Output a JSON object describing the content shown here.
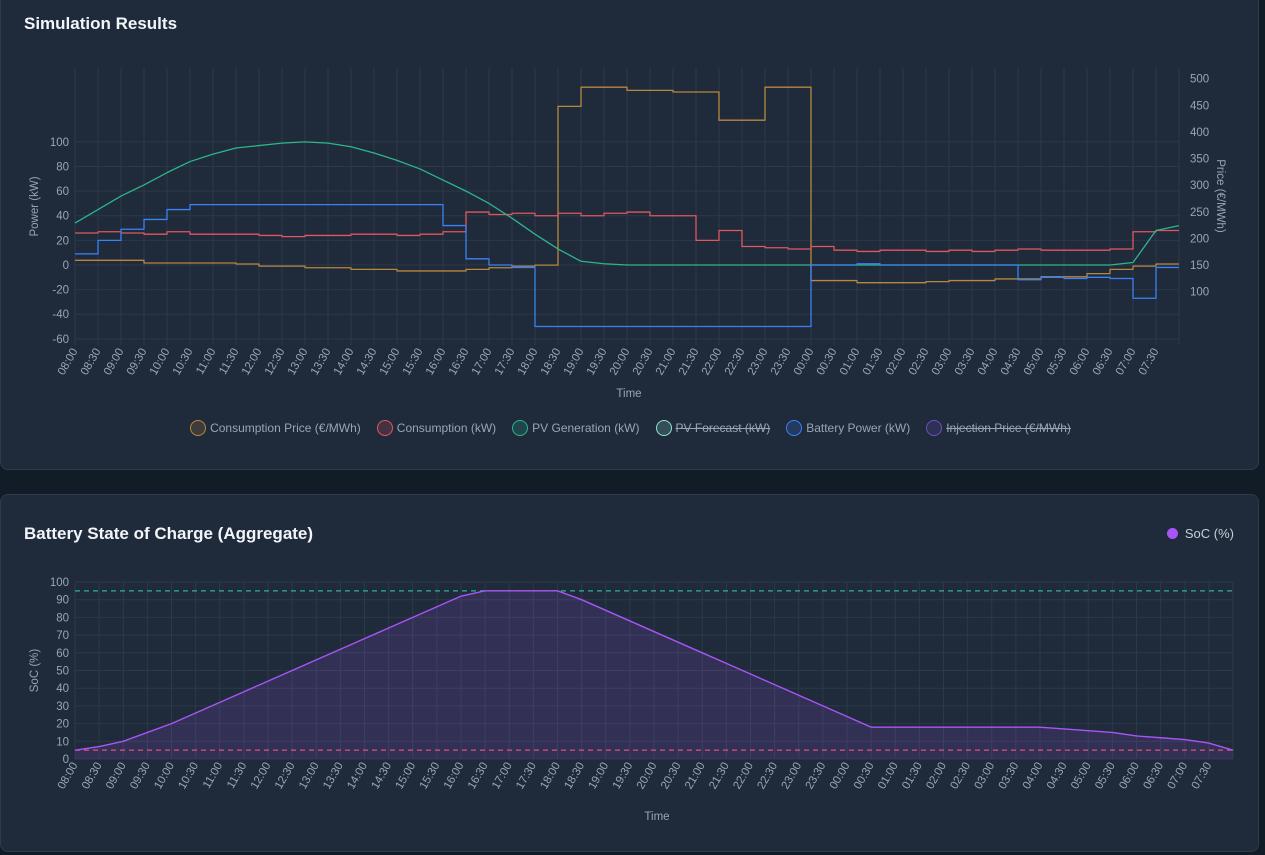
{
  "sim": {
    "title": "Simulation Results",
    "legend": [
      {
        "label": "Consumption Price (€/MWh)",
        "color": "#b8883e",
        "hidden": false
      },
      {
        "label": "Consumption (kW)",
        "color": "#e0575f",
        "hidden": false
      },
      {
        "label": "PV Generation (kW)",
        "color": "#2db58c",
        "hidden": false
      },
      {
        "label": "PV Forecast (kW)",
        "color": "#8fe3cf",
        "hidden": true
      },
      {
        "label": "Battery Power (kW)",
        "color": "#3b82f6",
        "hidden": false
      },
      {
        "label": "Injection Price (€/MWh)",
        "color": "#6d4fc0",
        "hidden": true
      }
    ]
  },
  "soc": {
    "title": "Battery State of Charge (Aggregate)",
    "legend_label": "SoC (%)"
  },
  "chart_data": [
    {
      "type": "line",
      "title": "Simulation Results",
      "xlabel": "Time",
      "ylabel": "Power (kW)",
      "y2label": "Price (€/MWh)",
      "ylim": [
        -65,
        160
      ],
      "y2lim": [
        0,
        520
      ],
      "yticks": [
        -60,
        -40,
        -20,
        0,
        20,
        40,
        60,
        80,
        100
      ],
      "y2ticks": [
        100,
        150,
        200,
        250,
        300,
        350,
        400,
        450,
        500
      ],
      "categories": [
        "08:00",
        "08:30",
        "09:00",
        "09:30",
        "10:00",
        "10:30",
        "11:00",
        "11:30",
        "12:00",
        "12:30",
        "13:00",
        "13:30",
        "14:00",
        "14:30",
        "15:00",
        "15:30",
        "16:00",
        "16:30",
        "17:00",
        "17:30",
        "18:00",
        "18:30",
        "19:00",
        "19:30",
        "20:00",
        "20:30",
        "21:00",
        "21:30",
        "22:00",
        "22:30",
        "23:00",
        "23:30",
        "00:00",
        "00:30",
        "01:00",
        "01:30",
        "02:00",
        "02:30",
        "03:00",
        "03:30",
        "04:00",
        "04:30",
        "05:00",
        "05:30",
        "06:00",
        "06:30",
        "07:00",
        "07:30"
      ],
      "grid": true,
      "legend_position": "bottom",
      "series": [
        {
          "name": "Consumption Price (€/MWh)",
          "axis": "right",
          "step": true,
          "color": "#b8883e",
          "values": [
            159,
            159,
            159,
            154,
            154,
            154,
            154,
            152,
            148,
            148,
            145,
            145,
            142,
            142,
            139,
            139,
            139,
            142,
            145,
            148,
            150,
            448,
            484,
            484,
            478,
            478,
            475,
            475,
            422,
            422,
            484,
            484,
            121,
            121,
            117,
            117,
            117,
            119,
            121,
            121,
            124,
            124,
            128,
            128,
            134,
            142,
            148,
            152
          ]
        },
        {
          "name": "Consumption (kW)",
          "axis": "left",
          "step": true,
          "color": "#e0575f",
          "values": [
            26,
            27,
            26,
            25,
            27,
            25,
            25,
            25,
            24,
            23,
            24,
            24,
            25,
            25,
            24,
            25,
            27,
            43,
            41,
            42,
            40,
            42,
            40,
            42,
            43,
            40,
            40,
            20,
            28,
            15,
            14,
            13,
            15,
            12,
            11,
            12,
            12,
            11,
            12,
            11,
            12,
            13,
            12,
            12,
            12,
            13,
            27,
            28
          ]
        },
        {
          "name": "PV Generation (kW)",
          "axis": "left",
          "step": false,
          "color": "#2db58c",
          "values": [
            34,
            45,
            56,
            65,
            75,
            84,
            90,
            95,
            97,
            99,
            100,
            99,
            96,
            91,
            85,
            78,
            69,
            60,
            50,
            38,
            25,
            13,
            3,
            1,
            0,
            0,
            0,
            0,
            0,
            0,
            0,
            0,
            0,
            0,
            0,
            0,
            0,
            0,
            0,
            0,
            0,
            0,
            0,
            0,
            0,
            0,
            2,
            28
          ]
        },
        {
          "name": "Battery Power (kW)",
          "axis": "left",
          "step": true,
          "color": "#3b82f6",
          "values": [
            9,
            20,
            29,
            37,
            45,
            49,
            49,
            49,
            49,
            49,
            49,
            49,
            49,
            49,
            49,
            49,
            32,
            5,
            0,
            -2,
            -50,
            -50,
            -50,
            -50,
            -50,
            -50,
            -50,
            -50,
            -50,
            -50,
            -50,
            -50,
            0,
            0,
            1,
            0,
            0,
            0,
            0,
            0,
            0,
            -12,
            -10,
            -11,
            -10,
            -11,
            -27,
            -2
          ]
        }
      ]
    },
    {
      "type": "area",
      "title": "Battery State of Charge (Aggregate)",
      "xlabel": "Time",
      "ylabel": "SoC (%)",
      "ylim": [
        0,
        100
      ],
      "yticks": [
        0,
        10,
        20,
        30,
        40,
        50,
        60,
        70,
        80,
        90,
        100
      ],
      "categories": [
        "08:00",
        "08:30",
        "09:00",
        "09:30",
        "10:00",
        "10:30",
        "11:00",
        "11:30",
        "12:00",
        "12:30",
        "13:00",
        "13:30",
        "14:00",
        "14:30",
        "15:00",
        "15:30",
        "16:00",
        "16:30",
        "17:00",
        "17:30",
        "18:00",
        "18:30",
        "19:00",
        "19:30",
        "20:00",
        "20:30",
        "21:00",
        "21:30",
        "22:00",
        "22:30",
        "23:00",
        "23:30",
        "00:00",
        "00:30",
        "01:00",
        "01:30",
        "02:00",
        "02:30",
        "03:00",
        "03:30",
        "04:00",
        "04:30",
        "05:00",
        "05:30",
        "06:00",
        "06:30",
        "07:00",
        "07:30",
        "08:00"
      ],
      "grid": true,
      "legend_position": "top-right",
      "thresholds": [
        {
          "value": 95,
          "color": "#2db58c"
        },
        {
          "value": 5,
          "color": "#e0575f"
        }
      ],
      "series": [
        {
          "name": "SoC (%)",
          "color": "#a855f7",
          "values": [
            5,
            7,
            10,
            15,
            20,
            26,
            32,
            38,
            44,
            50,
            56,
            62,
            68,
            74,
            80,
            86,
            92,
            95,
            95,
            95,
            95,
            90,
            84,
            78,
            72,
            66,
            60,
            54,
            48,
            42,
            36,
            30,
            24,
            18,
            18,
            18,
            18,
            18,
            18,
            18,
            18,
            17,
            16,
            15,
            13,
            12,
            11,
            9,
            5
          ]
        }
      ]
    }
  ]
}
